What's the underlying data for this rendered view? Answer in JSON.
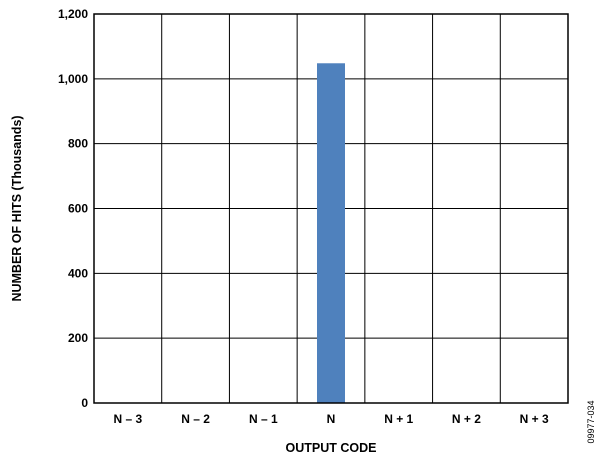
{
  "figure_code": "09977-034",
  "chart_data": {
    "type": "bar",
    "title": "",
    "xlabel": "OUTPUT CODE",
    "ylabel": "NUMBER OF HITS (Thousands)",
    "categories": [
      "N – 3",
      "N – 2",
      "N – 1",
      "N",
      "N + 1",
      "N + 2",
      "N + 3"
    ],
    "values": [
      0,
      0,
      0,
      1048,
      0,
      0,
      0
    ],
    "ylim": [
      0,
      1200
    ],
    "yticks": [
      0,
      200,
      400,
      600,
      800,
      1000,
      1200
    ],
    "ytick_labels": [
      "0",
      "200",
      "400",
      "600",
      "800",
      "1,000",
      "1,200"
    ],
    "grid": true,
    "bar_color": "#4f81bd"
  }
}
